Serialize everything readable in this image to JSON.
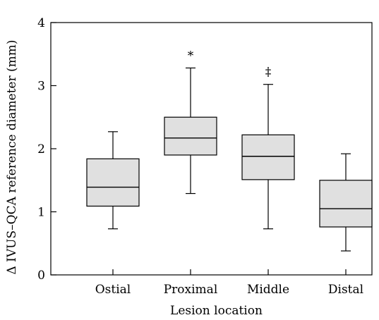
{
  "chart_data": {
    "type": "boxplot",
    "title": "",
    "xlabel": "Lesion location",
    "ylabel": "Δ IVUS–QCA reference diameter (mm)",
    "ylim": [
      0,
      4
    ],
    "yticks": [
      "0",
      "1",
      "2",
      "3",
      "4"
    ],
    "grid": false,
    "legend": "none",
    "box_fill": "#e0e0e0",
    "line_color": "#000000",
    "categories": [
      "Ostial",
      "Proximal",
      "Middle",
      "Distal"
    ],
    "boxes": [
      {
        "category": "Ostial",
        "whisker_low": 0.73,
        "q1": 1.09,
        "median": 1.39,
        "q3": 1.84,
        "whisker_high": 2.27,
        "annotation": ""
      },
      {
        "category": "Proximal",
        "whisker_low": 1.29,
        "q1": 1.9,
        "median": 2.17,
        "q3": 2.5,
        "whisker_high": 3.28,
        "annotation": "*"
      },
      {
        "category": "Middle",
        "whisker_low": 0.73,
        "q1": 1.51,
        "median": 1.88,
        "q3": 2.22,
        "whisker_high": 3.02,
        "annotation": "‡"
      },
      {
        "category": "Distal",
        "whisker_low": 0.38,
        "q1": 0.76,
        "median": 1.05,
        "q3": 1.5,
        "whisker_high": 1.92,
        "annotation": ""
      }
    ]
  }
}
